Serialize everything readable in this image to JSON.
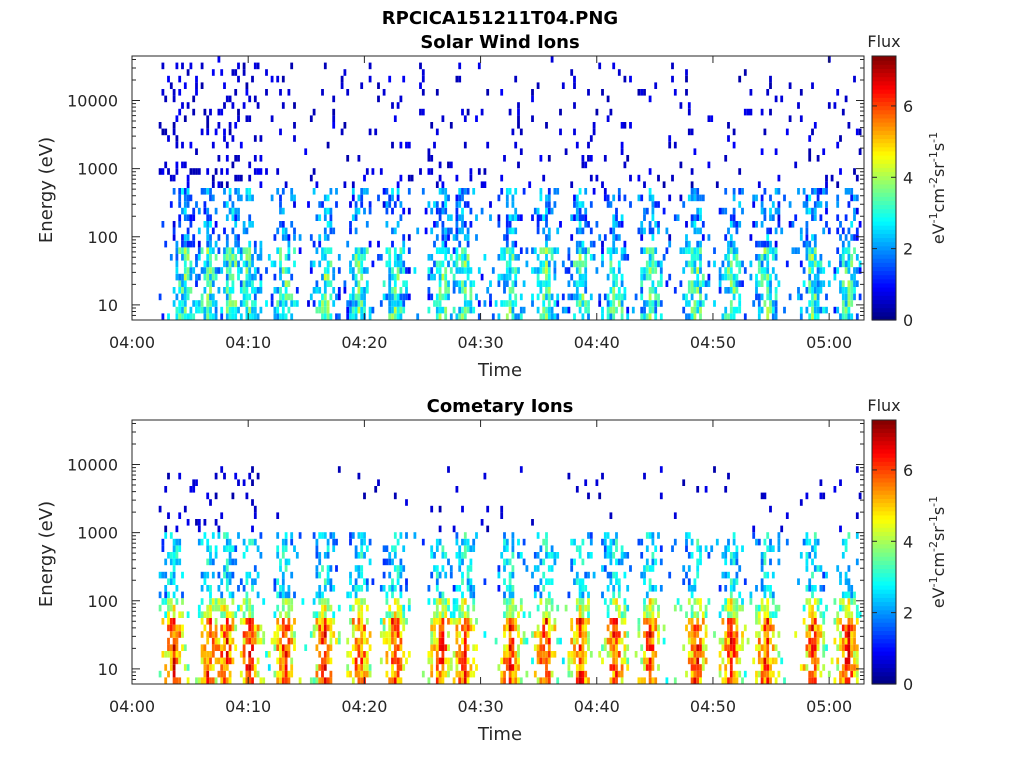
{
  "figure": {
    "title": "RPCICA151211T04.PNG"
  },
  "colorbar": {
    "label": "Flux",
    "unit_label": "eV-1cm-2sr-1s-1",
    "ticks": [
      "0",
      "2",
      "4",
      "6"
    ],
    "range": [
      0,
      7.4
    ],
    "colormap": "jet"
  },
  "chart_data": [
    {
      "type": "heatmap",
      "title": "Solar Wind Ions",
      "xlabel": "Time",
      "ylabel": "Energy (eV)",
      "x_ticks": [
        "04:00",
        "04:10",
        "04:20",
        "04:30",
        "04:40",
        "04:50",
        "05:00"
      ],
      "x_range_minutes": [
        0,
        63
      ],
      "y_ticks": [
        "10",
        "100",
        "1000",
        "10000"
      ],
      "y_scale": "log",
      "y_range": [
        6,
        45000
      ],
      "data_start_minute": 2.3,
      "bursts": [
        4.5,
        6.5,
        8.5,
        10.0,
        13.0,
        16.5,
        19.5,
        22.5,
        26.5,
        28.5,
        32.5,
        35.5,
        38.5,
        41.5,
        44.5,
        48.5,
        51.5,
        54.5,
        58.5,
        61.5
      ],
      "seed": 7,
      "profile": "solar"
    },
    {
      "type": "heatmap",
      "title": "Cometary Ions",
      "xlabel": "Time",
      "ylabel": "Energy (eV)",
      "x_ticks": [
        "04:00",
        "04:10",
        "04:20",
        "04:30",
        "04:40",
        "04:50",
        "05:00"
      ],
      "x_range_minutes": [
        0,
        63
      ],
      "y_ticks": [
        "10",
        "100",
        "1000",
        "10000"
      ],
      "y_scale": "log",
      "y_range": [
        6,
        45000
      ],
      "data_start_minute": 2.3,
      "bursts": [
        3.5,
        6.5,
        8.0,
        10.0,
        13.0,
        16.5,
        19.5,
        22.5,
        26.5,
        28.5,
        32.5,
        35.5,
        38.5,
        41.5,
        44.5,
        48.5,
        51.5,
        54.5,
        58.5,
        61.5
      ],
      "seed": 11,
      "profile": "comet"
    }
  ]
}
